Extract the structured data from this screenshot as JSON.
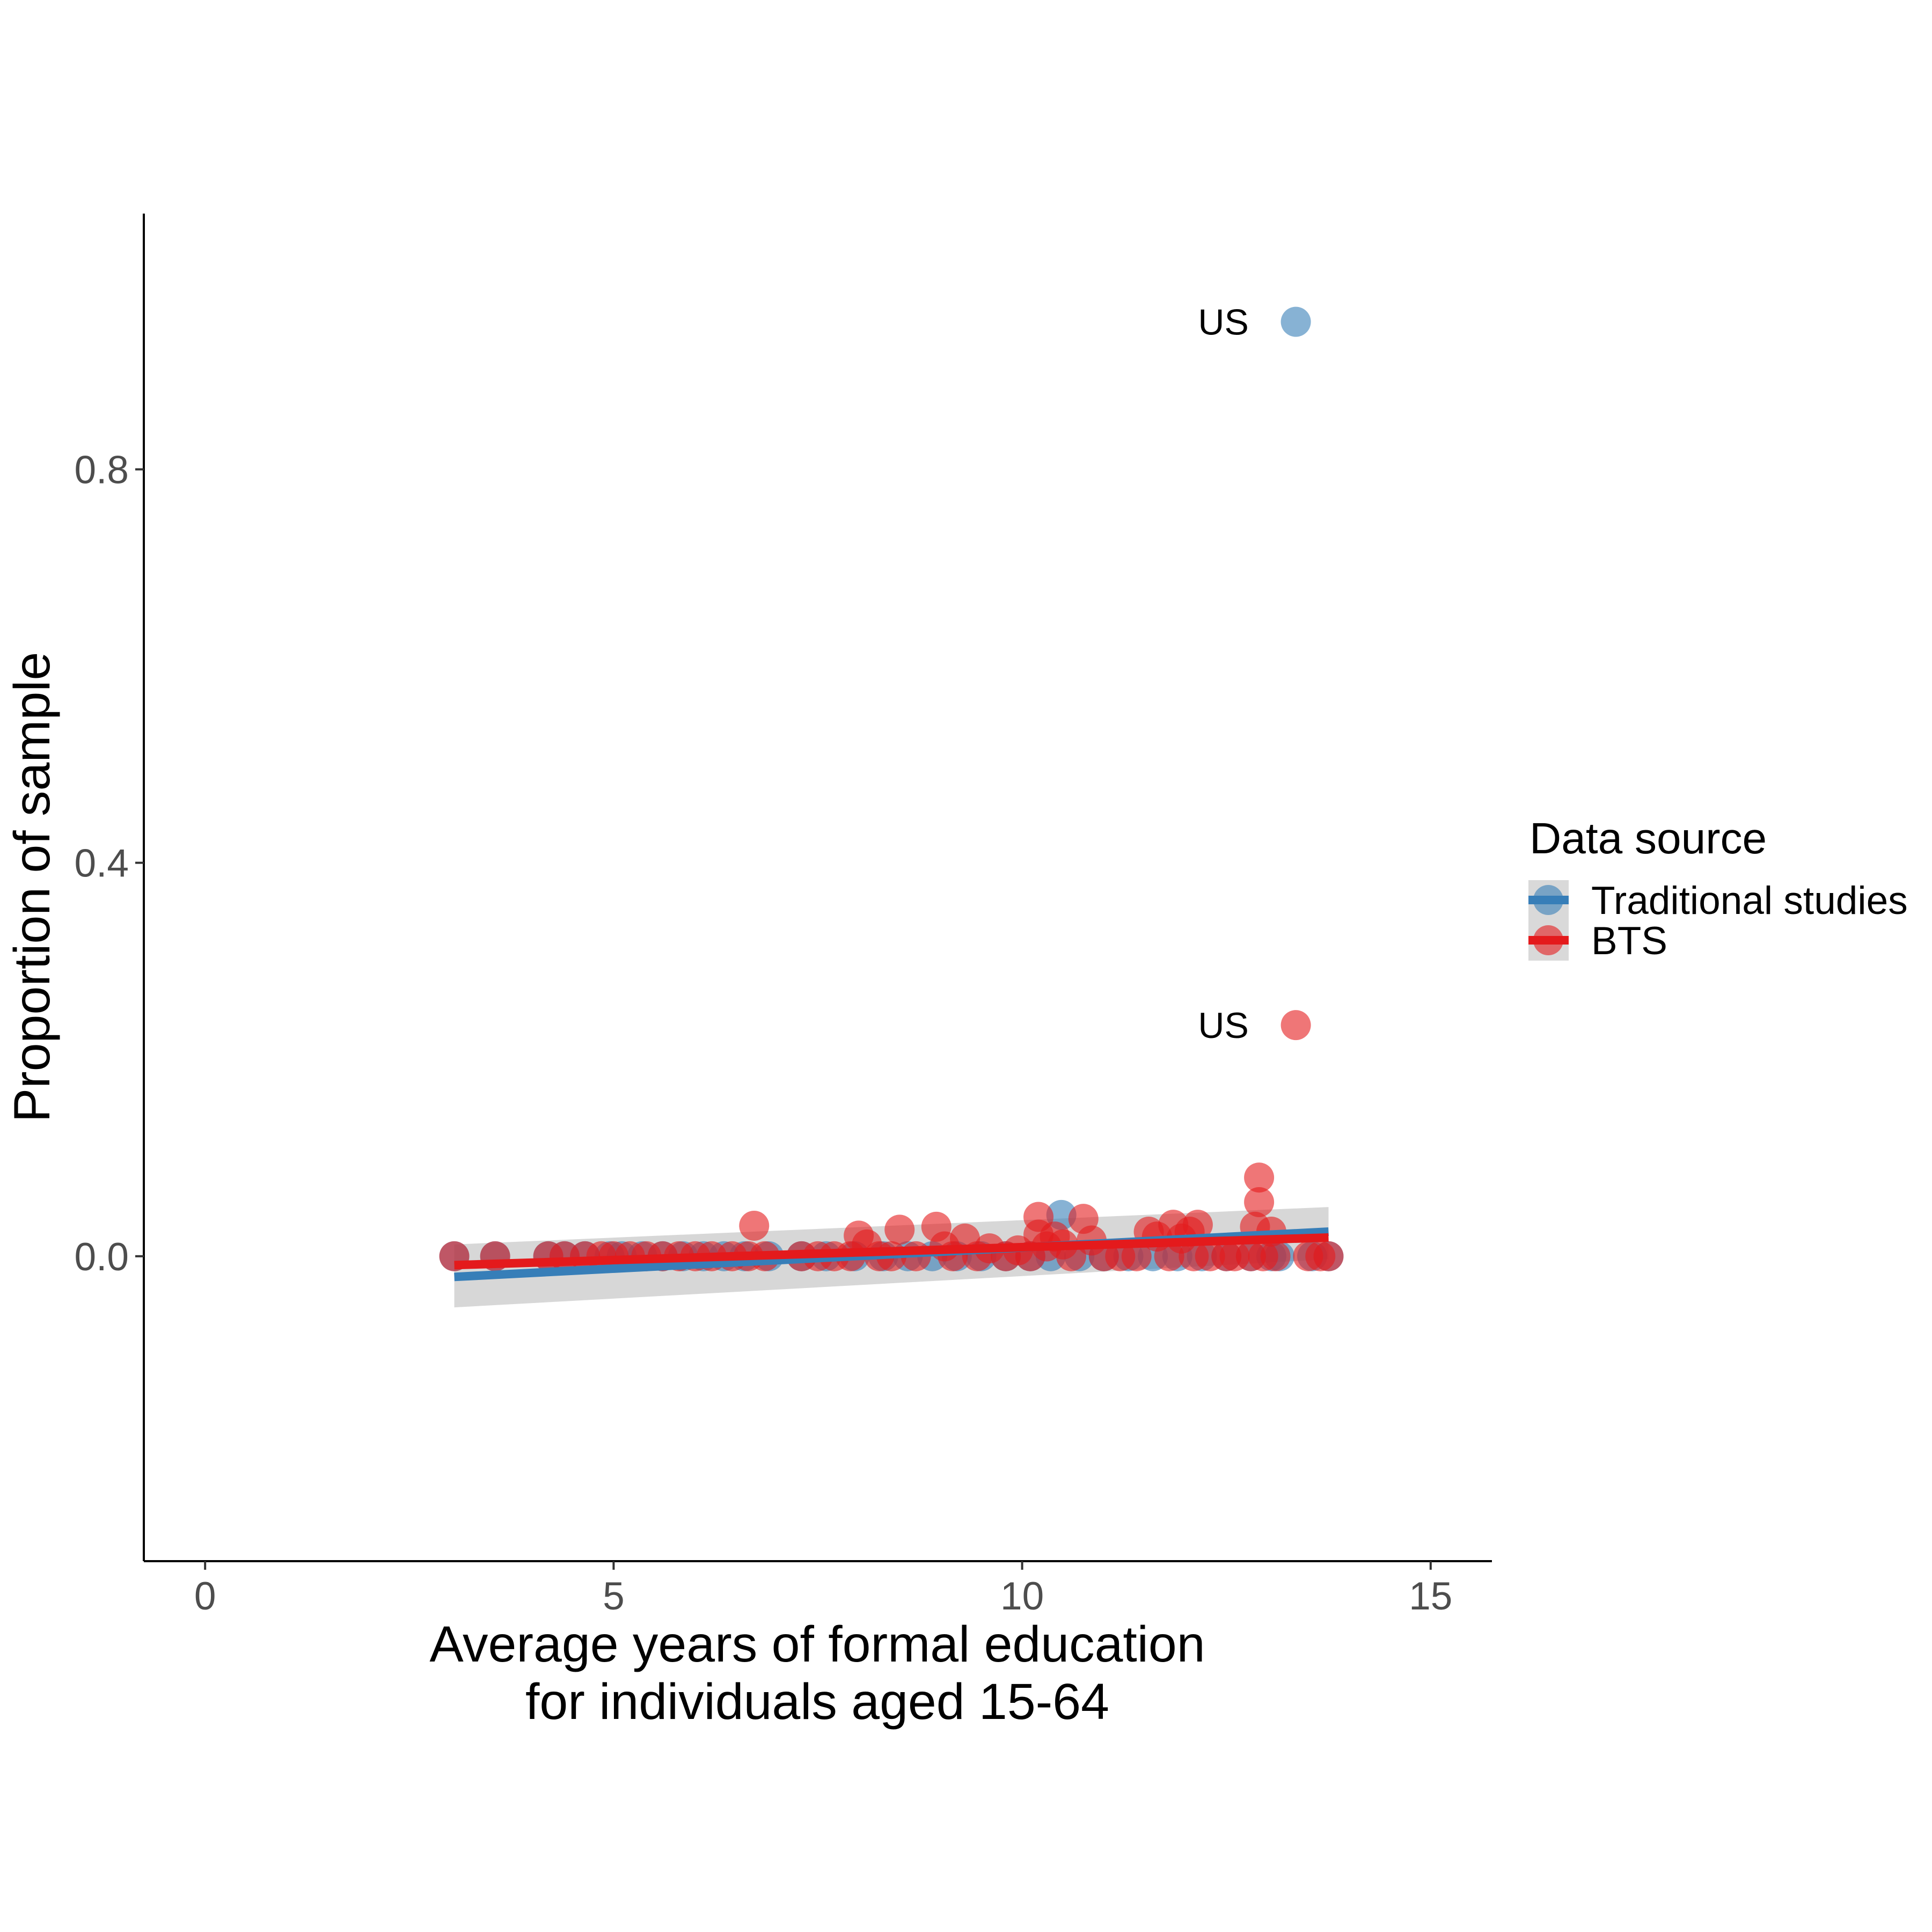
{
  "chart_data": {
    "type": "scatter",
    "title": "",
    "xlabel_lines": [
      "Average years of formal education",
      "for individuals aged 15-64"
    ],
    "ylabel": "Proportion of sample",
    "xlim": [
      -0.75,
      15.75
    ],
    "ylim": [
      -0.31,
      1.06
    ],
    "x_ticks": [
      0,
      5,
      10,
      15
    ],
    "x_tick_labels": [
      "0",
      "5",
      "10",
      "15"
    ],
    "y_ticks": [
      0.0,
      0.4,
      0.8
    ],
    "y_tick_labels": [
      "0.0",
      "0.4",
      "0.8"
    ],
    "grid": false,
    "legend": {
      "title": "Data source",
      "placement": "right",
      "entries": [
        "Traditional studies",
        "BTS"
      ]
    },
    "series": [
      {
        "name": "Traditional studies",
        "color": "#377eb8",
        "points": [
          [
            3.05,
            0
          ],
          [
            3.55,
            0
          ],
          [
            4.2,
            0
          ],
          [
            4.4,
            0
          ],
          [
            4.65,
            0
          ],
          [
            4.95,
            0
          ],
          [
            5.1,
            0
          ],
          [
            5.35,
            0
          ],
          [
            5.6,
            0
          ],
          [
            5.85,
            0
          ],
          [
            6.1,
            0
          ],
          [
            6.35,
            0
          ],
          [
            6.6,
            0
          ],
          [
            6.9,
            0
          ],
          [
            7.3,
            0
          ],
          [
            7.6,
            0
          ],
          [
            7.95,
            0
          ],
          [
            8.3,
            0
          ],
          [
            8.6,
            0
          ],
          [
            8.9,
            0
          ],
          [
            9.2,
            0
          ],
          [
            9.5,
            0
          ],
          [
            9.8,
            0
          ],
          [
            10.1,
            0
          ],
          [
            10.35,
            0
          ],
          [
            10.48,
            0.042
          ],
          [
            10.7,
            0
          ],
          [
            11.0,
            0
          ],
          [
            11.3,
            0
          ],
          [
            11.6,
            0
          ],
          [
            11.9,
            0
          ],
          [
            12.2,
            0
          ],
          [
            12.5,
            0
          ],
          [
            12.8,
            0
          ],
          [
            13.05,
            0
          ],
          [
            13.15,
            0
          ],
          [
            13.35,
            0.95
          ],
          [
            13.55,
            0
          ],
          [
            13.75,
            0
          ]
        ],
        "labeled_points": [
          {
            "x": 13.35,
            "y": 0.95,
            "text": "US"
          }
        ],
        "fit": {
          "x": [
            3.05,
            13.75
          ],
          "y": [
            -0.021,
            0.025
          ]
        }
      },
      {
        "name": "BTS",
        "color": "#e41a1c",
        "points": [
          [
            3.05,
            0
          ],
          [
            3.55,
            0
          ],
          [
            4.2,
            0
          ],
          [
            4.4,
            0
          ],
          [
            4.65,
            0
          ],
          [
            4.85,
            0
          ],
          [
            5.0,
            0
          ],
          [
            5.2,
            0
          ],
          [
            5.4,
            0
          ],
          [
            5.6,
            0
          ],
          [
            5.8,
            0
          ],
          [
            6.0,
            0
          ],
          [
            6.2,
            0
          ],
          [
            6.45,
            0
          ],
          [
            6.65,
            0
          ],
          [
            6.72,
            0.031
          ],
          [
            6.85,
            0
          ],
          [
            7.3,
            0
          ],
          [
            7.5,
            0
          ],
          [
            7.7,
            0
          ],
          [
            7.9,
            0
          ],
          [
            8.0,
            0.021
          ],
          [
            8.1,
            0.012
          ],
          [
            8.25,
            0
          ],
          [
            8.4,
            0
          ],
          [
            8.5,
            0.027
          ],
          [
            8.7,
            0
          ],
          [
            8.95,
            0.03
          ],
          [
            9.05,
            0.01
          ],
          [
            9.15,
            0
          ],
          [
            9.3,
            0.018
          ],
          [
            9.45,
            0
          ],
          [
            9.6,
            0.008
          ],
          [
            9.8,
            0
          ],
          [
            9.95,
            0.006
          ],
          [
            10.1,
            0
          ],
          [
            10.2,
            0.04
          ],
          [
            10.2,
            0.022
          ],
          [
            10.3,
            0.01
          ],
          [
            10.4,
            0.02
          ],
          [
            10.5,
            0.012
          ],
          [
            10.6,
            0
          ],
          [
            10.75,
            0.038
          ],
          [
            10.85,
            0.016
          ],
          [
            11.0,
            0
          ],
          [
            11.2,
            0
          ],
          [
            11.4,
            0
          ],
          [
            11.55,
            0.025
          ],
          [
            11.65,
            0.02
          ],
          [
            11.8,
            0
          ],
          [
            11.85,
            0.032
          ],
          [
            11.95,
            0.018
          ],
          [
            12.05,
            0.025
          ],
          [
            12.1,
            0
          ],
          [
            12.15,
            0.032
          ],
          [
            12.3,
            0
          ],
          [
            12.5,
            0
          ],
          [
            12.6,
            0
          ],
          [
            12.8,
            0
          ],
          [
            12.9,
            0.055
          ],
          [
            12.9,
            0.08
          ],
          [
            12.85,
            0.03
          ],
          [
            12.95,
            0
          ],
          [
            13.05,
            0.025
          ],
          [
            13.1,
            0
          ],
          [
            13.35,
            0.235
          ],
          [
            13.5,
            0
          ],
          [
            13.65,
            0
          ],
          [
            13.75,
            0
          ]
        ],
        "labeled_points": [
          {
            "x": 13.35,
            "y": 0.235,
            "text": "US"
          }
        ],
        "fit": {
          "x": [
            3.05,
            13.75
          ],
          "y": [
            -0.009,
            0.019
          ]
        }
      }
    ],
    "confidence_band": {
      "x": [
        3.05,
        13.75
      ],
      "lower": [
        -0.052,
        -0.003
      ],
      "upper": [
        0.012,
        0.05
      ]
    }
  }
}
